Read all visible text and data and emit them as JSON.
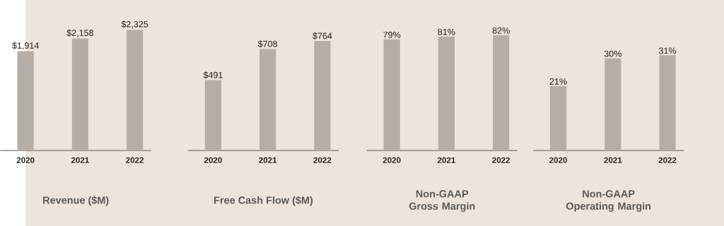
{
  "chart_data": [
    {
      "type": "bar",
      "title": "Revenue ($M)",
      "categories": [
        "2020",
        "2021",
        "2022"
      ],
      "values": [
        1914,
        2158,
        2325
      ],
      "value_labels": [
        "$1,914",
        "$2,158",
        "$2,325"
      ],
      "color": "#b5ada6",
      "ylim": [
        0,
        2900
      ]
    },
    {
      "type": "bar",
      "title": "Free Cash Flow ($M)",
      "categories": [
        "2020",
        "2021",
        "2022"
      ],
      "values": [
        491,
        708,
        764
      ],
      "value_labels": [
        "$491",
        "$708",
        "$764"
      ],
      "color": "#b5ada6",
      "ylim": [
        0,
        1050
      ]
    },
    {
      "type": "bar",
      "title": "Non-GAAP Gross Margin",
      "categories": [
        "2020",
        "2021",
        "2022"
      ],
      "values": [
        79,
        81,
        82
      ],
      "value_labels": [
        "79%",
        "81%",
        "82%"
      ],
      "color": "#b5ada6",
      "ylim": [
        0,
        107
      ]
    },
    {
      "type": "bar",
      "title": "Non-GAAP Operating Margin",
      "categories": [
        "2020",
        "2021",
        "2022"
      ],
      "values": [
        21,
        30,
        31
      ],
      "value_labels": [
        "21%",
        "30%",
        "31%"
      ],
      "color": "#b5ada6",
      "ylim": [
        0,
        49
      ]
    }
  ]
}
